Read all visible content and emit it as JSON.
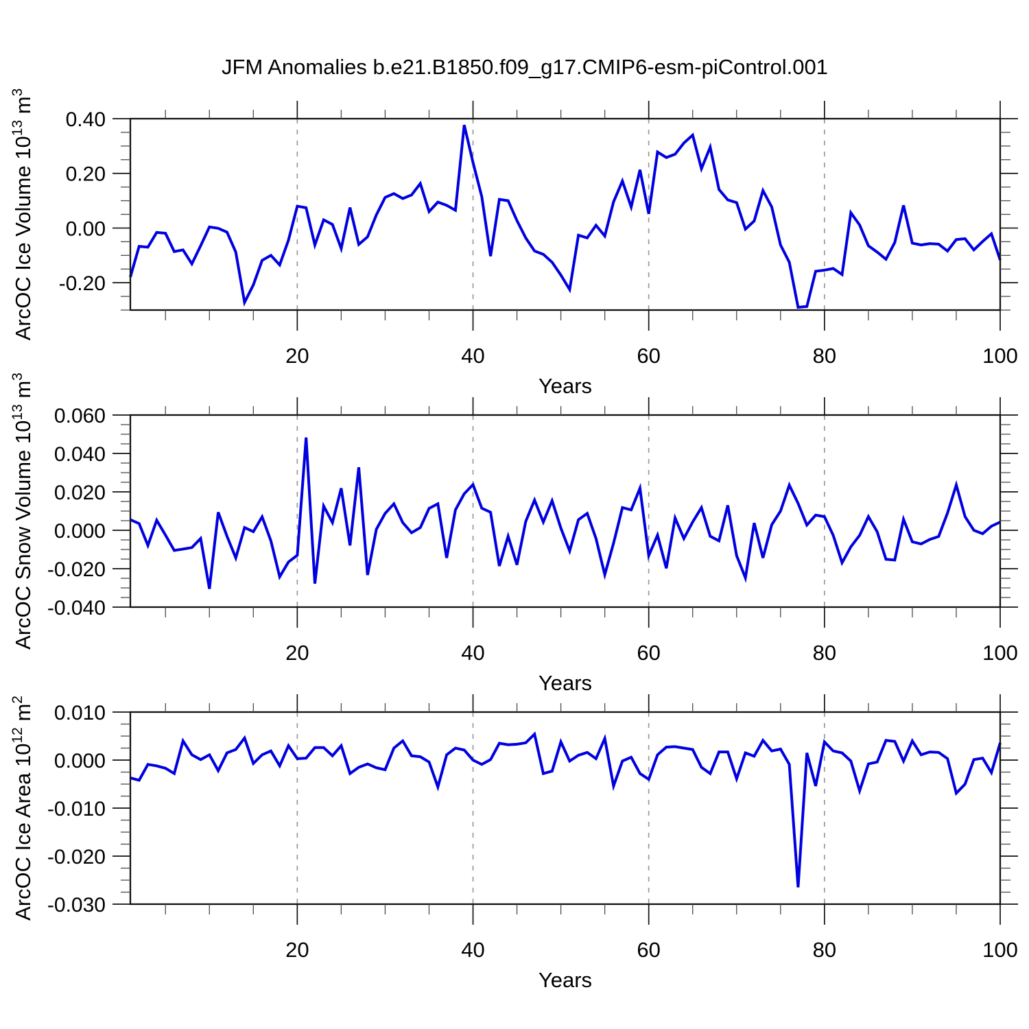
{
  "title": "JFM Anomalies b.e21.B1850.f09_g17.CMIP6-esm-piControl.001",
  "colors": {
    "line": "#0000e0",
    "grid": "#999999",
    "axis": "#111111",
    "minor_tick": "#4a4a4a",
    "text": "#000000",
    "background": "#ffffff"
  },
  "chart_data": [
    {
      "id": "ice-volume",
      "type": "line",
      "ylabel_plain": "ArcOC Ice Volume 10^13 m^3",
      "ylabel_parts": [
        {
          "text": "ArcOC Ice Volume 10",
          "sup": false
        },
        {
          "text": "13",
          "sup": true
        },
        {
          "text": " m",
          "sup": false
        },
        {
          "text": "3",
          "sup": true
        }
      ],
      "xlabel": "Years",
      "xlim": [
        1,
        100
      ],
      "ylim": [
        -0.3,
        0.4
      ],
      "x_major_ticks": [
        20,
        40,
        60,
        80,
        100
      ],
      "x_major_labels": [
        "20",
        "40",
        "60",
        "80",
        "100"
      ],
      "x_minor_step": 5,
      "gridlines_x": [
        20,
        40,
        60,
        80
      ],
      "y_major_ticks": [
        {
          "value": 0.4,
          "label": "0.40"
        },
        {
          "value": 0.2,
          "label": "0.20"
        },
        {
          "value": 0.0,
          "label": "0.00"
        },
        {
          "value": -0.2,
          "label": "-0.20"
        }
      ],
      "y_minor_step": 0.05,
      "values_start_year": 1,
      "values": [
        -0.179,
        -0.067,
        -0.07,
        -0.016,
        -0.019,
        -0.086,
        -0.08,
        -0.131,
        -0.065,
        0.004,
        -0.001,
        -0.015,
        -0.088,
        -0.272,
        -0.208,
        -0.118,
        -0.1,
        -0.135,
        -0.044,
        0.08,
        0.074,
        -0.062,
        0.03,
        0.013,
        -0.075,
        0.075,
        -0.06,
        -0.032,
        0.048,
        0.112,
        0.126,
        0.108,
        0.121,
        0.163,
        0.06,
        0.095,
        0.083,
        0.065,
        0.377,
        0.24,
        0.115,
        -0.103,
        0.105,
        0.1,
        0.027,
        -0.036,
        -0.084,
        -0.096,
        -0.125,
        -0.172,
        -0.225,
        -0.026,
        -0.036,
        0.01,
        -0.029,
        0.096,
        0.172,
        0.077,
        0.213,
        0.052,
        0.278,
        0.258,
        0.27,
        0.311,
        0.34,
        0.217,
        0.296,
        0.141,
        0.103,
        0.093,
        -0.004,
        0.026,
        0.137,
        0.077,
        -0.062,
        -0.125,
        -0.29,
        -0.287,
        -0.158,
        -0.154,
        -0.148,
        -0.17,
        0.056,
        0.011,
        -0.065,
        -0.088,
        -0.114,
        -0.053,
        0.083,
        -0.055,
        -0.062,
        -0.057,
        -0.059,
        -0.084,
        -0.042,
        -0.039,
        -0.08,
        -0.049,
        -0.021,
        -0.117
      ]
    },
    {
      "id": "snow-volume",
      "type": "line",
      "ylabel_plain": "ArcOC Snow Volume 10^13 m^3",
      "ylabel_parts": [
        {
          "text": "ArcOC Snow Volume 10",
          "sup": false
        },
        {
          "text": "13",
          "sup": true
        },
        {
          "text": " m",
          "sup": false
        },
        {
          "text": "3",
          "sup": true
        }
      ],
      "xlabel": "Years",
      "xlim": [
        1,
        100
      ],
      "ylim": [
        -0.04,
        0.06
      ],
      "x_major_ticks": [
        20,
        40,
        60,
        80,
        100
      ],
      "x_major_labels": [
        "20",
        "40",
        "60",
        "80",
        "100"
      ],
      "x_minor_step": 5,
      "gridlines_x": [
        20,
        40,
        60,
        80
      ],
      "y_major_ticks": [
        {
          "value": 0.06,
          "label": "0.060"
        },
        {
          "value": 0.04,
          "label": "0.040"
        },
        {
          "value": 0.02,
          "label": "0.020"
        },
        {
          "value": 0.0,
          "label": "0.000"
        },
        {
          "value": -0.02,
          "label": "-0.020"
        },
        {
          "value": -0.04,
          "label": "-0.040"
        }
      ],
      "y_minor_step": 0.005,
      "values_start_year": 1,
      "values": [
        0.0055,
        0.0035,
        -0.0079,
        0.0052,
        -0.0025,
        -0.0105,
        -0.0098,
        -0.009,
        -0.0043,
        -0.0305,
        0.0094,
        -0.0031,
        -0.0144,
        0.0014,
        -0.0007,
        0.007,
        -0.0055,
        -0.0242,
        -0.0165,
        -0.013,
        0.0483,
        -0.0278,
        0.0126,
        0.004,
        0.0219,
        -0.0079,
        0.0328,
        -0.0233,
        0.0005,
        0.0088,
        0.0138,
        0.004,
        -0.0013,
        0.0014,
        0.0114,
        0.0138,
        -0.0144,
        0.0106,
        0.019,
        0.0238,
        0.0115,
        0.0094,
        -0.0186,
        -0.0031,
        -0.018,
        0.0046,
        0.0157,
        0.0043,
        0.0154,
        0.0011,
        -0.0108,
        0.0055,
        0.0088,
        -0.0043,
        -0.0231,
        -0.0067,
        0.0118,
        0.0106,
        0.0219,
        -0.0132,
        -0.0025,
        -0.0198,
        0.0064,
        -0.0043,
        0.0043,
        0.0118,
        -0.0031,
        -0.0055,
        0.013,
        -0.0132,
        -0.0248,
        0.0038,
        -0.0144,
        0.0029,
        0.01,
        0.0235,
        0.014,
        0.0027,
        0.0079,
        0.0071,
        -0.0026,
        -0.0169,
        -0.0086,
        -0.0026,
        0.0071,
        -0.0008,
        -0.0151,
        -0.0155,
        0.0057,
        -0.006,
        -0.0071,
        -0.0048,
        -0.0032,
        0.009,
        0.0236,
        0.0071,
        0.0,
        -0.0018,
        0.0021,
        0.0043
      ]
    },
    {
      "id": "ice-area",
      "type": "line",
      "ylabel_plain": "ArcOC Ice Area 10^12 m^2",
      "ylabel_parts": [
        {
          "text": "ArcOC Ice Area 10",
          "sup": false
        },
        {
          "text": "12",
          "sup": true
        },
        {
          "text": " m",
          "sup": false
        },
        {
          "text": "2",
          "sup": true
        }
      ],
      "xlabel": "Years",
      "xlim": [
        1,
        100
      ],
      "ylim": [
        -0.03,
        0.01
      ],
      "x_major_ticks": [
        20,
        40,
        60,
        80,
        100
      ],
      "x_major_labels": [
        "20",
        "40",
        "60",
        "80",
        "100"
      ],
      "x_minor_step": 5,
      "gridlines_x": [
        20,
        40,
        60,
        80
      ],
      "y_major_ticks": [
        {
          "value": 0.01,
          "label": "0.010"
        },
        {
          "value": 0.0,
          "label": "0.000"
        },
        {
          "value": -0.01,
          "label": "-0.010"
        },
        {
          "value": -0.02,
          "label": "-0.020"
        },
        {
          "value": -0.03,
          "label": "-0.030"
        }
      ],
      "y_minor_step": 0.0025,
      "values_start_year": 1,
      "values": [
        -0.0037,
        -0.0042,
        -0.0009,
        -0.0012,
        -0.0017,
        -0.0028,
        0.004,
        0.0011,
        0.0001,
        0.0011,
        -0.0022,
        0.0015,
        0.0022,
        0.0046,
        -0.0007,
        0.0011,
        0.0019,
        -0.0012,
        0.003,
        0.0003,
        0.0004,
        0.0026,
        0.0026,
        0.0009,
        0.003,
        -0.0028,
        -0.0015,
        -0.0008,
        -0.0016,
        -0.002,
        0.0025,
        0.004,
        0.0009,
        0.0007,
        -0.0004,
        -0.0056,
        0.0011,
        0.0025,
        0.0021,
        0.0,
        -0.0009,
        0.0001,
        0.0035,
        0.0032,
        0.0033,
        0.0036,
        0.0054,
        -0.0028,
        -0.0023,
        0.0038,
        -0.0002,
        0.001,
        0.0016,
        0.0003,
        0.0045,
        -0.0054,
        -0.0002,
        0.0006,
        -0.0028,
        -0.004,
        0.0011,
        0.0027,
        0.0028,
        0.0025,
        0.0022,
        -0.0015,
        -0.0028,
        0.0017,
        0.0017,
        -0.0039,
        0.0015,
        0.0008,
        0.0041,
        0.0019,
        0.0023,
        -0.0009,
        -0.0265,
        0.0015,
        -0.0054,
        0.0038,
        0.0019,
        0.0015,
        -0.0002,
        -0.0064,
        -0.0008,
        -0.0004,
        0.0041,
        0.0039,
        -0.0002,
        0.004,
        0.0011,
        0.0017,
        0.0016,
        0.0003,
        -0.0069,
        -0.005,
        0.0001,
        0.0004,
        -0.0026,
        0.0036
      ]
    }
  ]
}
